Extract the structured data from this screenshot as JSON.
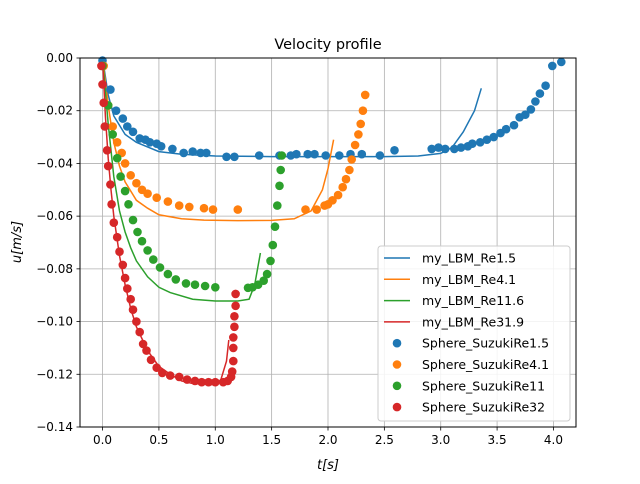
{
  "chart_data": {
    "type": "scatter",
    "title": "Velocity profile",
    "xlabel": "t[s]",
    "ylabel": "u[m/s]",
    "xlim": [
      -0.2,
      4.2
    ],
    "ylim": [
      -0.14,
      0.0
    ],
    "grid": true,
    "legend_position": "lower-right",
    "x_ticks": [
      0.0,
      0.5,
      1.0,
      1.5,
      2.0,
      2.5,
      3.0,
      3.5,
      4.0
    ],
    "x_tick_labels": [
      "0.0",
      "0.5",
      "1.0",
      "1.5",
      "2.0",
      "2.5",
      "3.0",
      "3.5",
      "4.0"
    ],
    "y_ticks": [
      0.0,
      -0.02,
      -0.04,
      -0.06,
      -0.08,
      -0.1,
      -0.12,
      -0.14
    ],
    "y_tick_labels": [
      "0.00",
      "−0.02",
      "−0.04",
      "−0.06",
      "−0.08",
      "−0.10",
      "−0.12",
      "−0.14"
    ],
    "series": [
      {
        "name": "my_LBM_Re1.5",
        "kind": "line",
        "color": "#1f77b4",
        "x": [
          0,
          0.05,
          0.1,
          0.2,
          0.3,
          0.5,
          0.7,
          1.0,
          1.5,
          2.0,
          2.5,
          2.8,
          3.0,
          3.1,
          3.2,
          3.3,
          3.36
        ],
        "y": [
          0,
          -0.014,
          -0.022,
          -0.029,
          -0.032,
          -0.0355,
          -0.0365,
          -0.0372,
          -0.0374,
          -0.0374,
          -0.0374,
          -0.0372,
          -0.0362,
          -0.034,
          -0.028,
          -0.02,
          -0.0115
        ]
      },
      {
        "name": "my_LBM_Re4.1",
        "kind": "line",
        "color": "#ff7f0e",
        "x": [
          0,
          0.05,
          0.1,
          0.15,
          0.2,
          0.3,
          0.4,
          0.5,
          0.7,
          0.9,
          1.2,
          1.5,
          1.7,
          1.85,
          1.95,
          2.0,
          2.05
        ],
        "y": [
          0,
          -0.018,
          -0.032,
          -0.041,
          -0.047,
          -0.054,
          -0.057,
          -0.0595,
          -0.061,
          -0.0615,
          -0.0617,
          -0.0616,
          -0.061,
          -0.058,
          -0.05,
          -0.042,
          -0.031
        ]
      },
      {
        "name": "my_LBM_Re11.6",
        "kind": "line",
        "color": "#2ca02c",
        "x": [
          0,
          0.05,
          0.1,
          0.15,
          0.2,
          0.25,
          0.3,
          0.4,
          0.5,
          0.6,
          0.8,
          1.0,
          1.2,
          1.3,
          1.35,
          1.4
        ],
        "y": [
          0,
          -0.025,
          -0.045,
          -0.058,
          -0.066,
          -0.072,
          -0.077,
          -0.083,
          -0.087,
          -0.089,
          -0.0915,
          -0.0922,
          -0.0922,
          -0.0915,
          -0.086,
          -0.074
        ]
      },
      {
        "name": "my_LBM_Re31.9",
        "kind": "line",
        "color": "#d62728",
        "x": [
          0,
          0.025,
          0.05,
          0.075,
          0.1,
          0.15,
          0.2,
          0.25,
          0.3,
          0.4,
          0.5,
          0.6,
          0.7,
          0.8,
          0.9,
          1.0,
          1.05,
          1.1,
          1.12
        ],
        "y": [
          0,
          -0.022,
          -0.038,
          -0.05,
          -0.06,
          -0.075,
          -0.086,
          -0.095,
          -0.102,
          -0.111,
          -0.117,
          -0.12,
          -0.1225,
          -0.1235,
          -0.1238,
          -0.124,
          -0.122,
          -0.115,
          -0.107
        ]
      },
      {
        "name": "Sphere_SuzukiRe1.5",
        "kind": "scatter",
        "color": "#1f77b4",
        "x": [
          0,
          0.07,
          0.12,
          0.18,
          0.22,
          0.27,
          0.33,
          0.38,
          0.42,
          0.48,
          0.52,
          0.62,
          0.72,
          0.8,
          0.87,
          0.92,
          1.1,
          1.17,
          1.39,
          1.57,
          1.67,
          1.72,
          1.82,
          1.88,
          1.98,
          2.1,
          2.2,
          2.3,
          2.46,
          2.59,
          2.92,
          2.98,
          3.04,
          3.12,
          3.18,
          3.24,
          3.28,
          3.35,
          3.41,
          3.47,
          3.53,
          3.58,
          3.65,
          3.7,
          3.75,
          3.8,
          3.84,
          3.88,
          3.93,
          3.99,
          4.07
        ],
        "y": [
          -0.001,
          -0.012,
          -0.02,
          -0.023,
          -0.026,
          -0.028,
          -0.0305,
          -0.031,
          -0.032,
          -0.0325,
          -0.0335,
          -0.0345,
          -0.036,
          -0.0355,
          -0.036,
          -0.036,
          -0.0375,
          -0.0375,
          -0.037,
          -0.037,
          -0.037,
          -0.0365,
          -0.0365,
          -0.0365,
          -0.037,
          -0.037,
          -0.0365,
          -0.0365,
          -0.037,
          -0.035,
          -0.0345,
          -0.034,
          -0.0345,
          -0.0345,
          -0.034,
          -0.0335,
          -0.0325,
          -0.032,
          -0.031,
          -0.03,
          -0.0285,
          -0.027,
          -0.0255,
          -0.0225,
          -0.0215,
          -0.0195,
          -0.0165,
          -0.0135,
          -0.0105,
          -0.003,
          -0.0015
        ]
      },
      {
        "name": "Sphere_SuzukiRe4.1",
        "kind": "scatter",
        "color": "#ff7f0e",
        "x": [
          0.01,
          0.05,
          0.09,
          0.13,
          0.17,
          0.2,
          0.25,
          0.3,
          0.35,
          0.4,
          0.48,
          0.58,
          0.68,
          0.77,
          0.9,
          0.98,
          1.2,
          1.8,
          1.9,
          1.97,
          2.0,
          2.04,
          2.09,
          2.13,
          2.16,
          2.19,
          2.21,
          2.24,
          2.27,
          2.29,
          2.31,
          2.33
        ],
        "y": [
          -0.003,
          -0.018,
          -0.026,
          -0.032,
          -0.036,
          -0.04,
          -0.0445,
          -0.0475,
          -0.05,
          -0.0515,
          -0.053,
          -0.0545,
          -0.056,
          -0.0565,
          -0.057,
          -0.0575,
          -0.0575,
          -0.0575,
          -0.0575,
          -0.056,
          -0.0555,
          -0.054,
          -0.052,
          -0.049,
          -0.046,
          -0.0425,
          -0.0385,
          -0.033,
          -0.029,
          -0.025,
          -0.02,
          -0.014
        ]
      },
      {
        "name": "Sphere_SuzukiRe11",
        "kind": "scatter",
        "color": "#2ca02c",
        "x": [
          0.0,
          0.05,
          0.09,
          0.13,
          0.16,
          0.2,
          0.23,
          0.27,
          0.31,
          0.35,
          0.4,
          0.45,
          0.51,
          0.58,
          0.65,
          0.74,
          0.82,
          0.91,
          1.0,
          1.29,
          1.33,
          1.38,
          1.43,
          1.46,
          1.49,
          1.51,
          1.53,
          1.55,
          1.57,
          1.58,
          1.59
        ],
        "y": [
          -0.003,
          -0.018,
          -0.029,
          -0.038,
          -0.045,
          -0.0505,
          -0.0555,
          -0.0615,
          -0.066,
          -0.0695,
          -0.073,
          -0.0765,
          -0.0795,
          -0.082,
          -0.084,
          -0.0855,
          -0.086,
          -0.0865,
          -0.087,
          -0.0872,
          -0.087,
          -0.086,
          -0.0845,
          -0.082,
          -0.077,
          -0.071,
          -0.064,
          -0.056,
          -0.0485,
          -0.0425,
          -0.037
        ]
      },
      {
        "name": "Sphere_SuzukiRe32",
        "kind": "scatter",
        "color": "#d62728",
        "x": [
          -0.01,
          0.0,
          0.01,
          0.02,
          0.04,
          0.05,
          0.07,
          0.08,
          0.1,
          0.13,
          0.15,
          0.18,
          0.2,
          0.22,
          0.25,
          0.27,
          0.3,
          0.33,
          0.36,
          0.39,
          0.43,
          0.48,
          0.53,
          0.6,
          0.68,
          0.75,
          0.82,
          0.88,
          0.94,
          1.0,
          1.07,
          1.11,
          1.14,
          1.15,
          1.16,
          1.16,
          1.16,
          1.17,
          1.17,
          1.18,
          1.18
        ],
        "y": [
          -0.003,
          -0.01,
          -0.017,
          -0.026,
          -0.035,
          -0.041,
          -0.048,
          -0.0555,
          -0.0625,
          -0.068,
          -0.0735,
          -0.0785,
          -0.0835,
          -0.0875,
          -0.0915,
          -0.0955,
          -0.1,
          -0.104,
          -0.1085,
          -0.111,
          -0.1145,
          -0.1175,
          -0.1195,
          -0.1205,
          -0.121,
          -0.122,
          -0.1225,
          -0.123,
          -0.123,
          -0.123,
          -0.123,
          -0.1225,
          -0.121,
          -0.119,
          -0.115,
          -0.11,
          -0.106,
          -0.102,
          -0.098,
          -0.094,
          -0.0895
        ]
      }
    ]
  }
}
